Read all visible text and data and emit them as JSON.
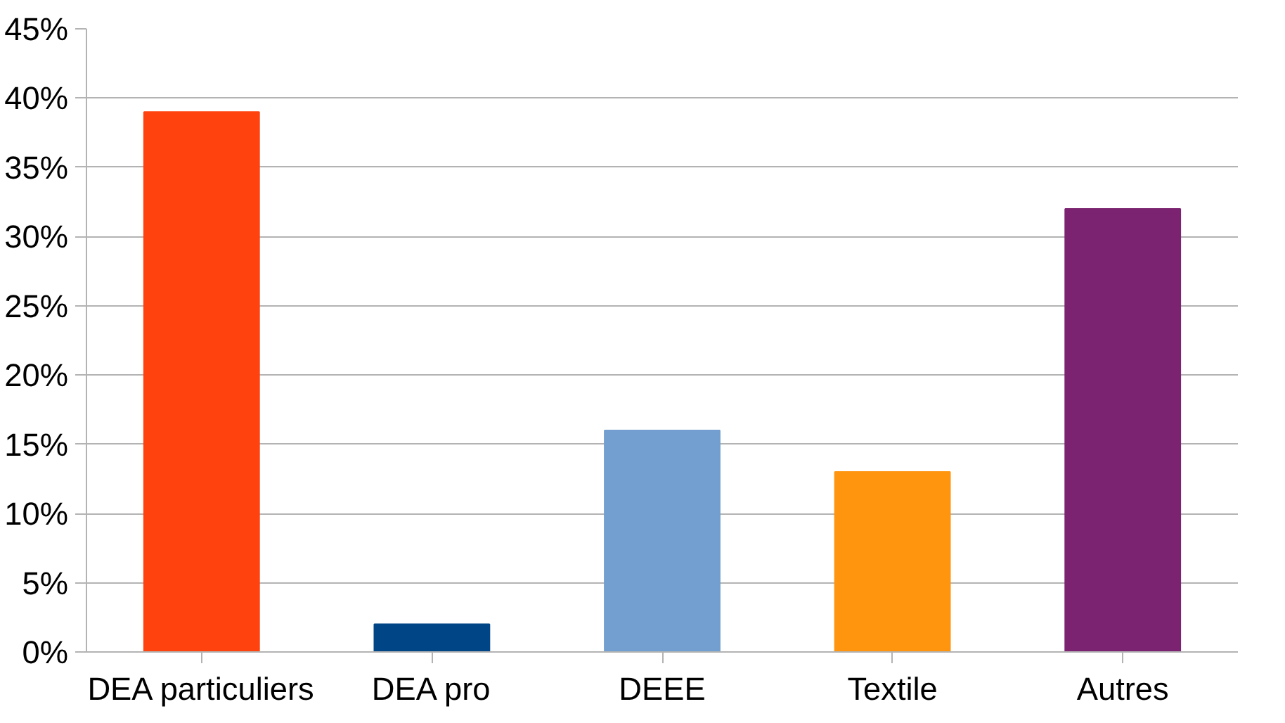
{
  "chart_data": {
    "type": "bar",
    "categories": [
      "DEA particuliers",
      "DEA pro",
      "DEEE",
      "Textile",
      "Autres"
    ],
    "values": [
      39,
      2,
      16,
      13,
      32
    ],
    "colors": [
      "#ff420e",
      "#004586",
      "#729fcf",
      "#ff950e",
      "#7b2370"
    ],
    "ylim": [
      0,
      45
    ],
    "yticks": [
      {
        "value": 0,
        "label": "0%"
      },
      {
        "value": 5,
        "label": "5%"
      },
      {
        "value": 10,
        "label": "10%"
      },
      {
        "value": 15,
        "label": "15%"
      },
      {
        "value": 20,
        "label": "20%"
      },
      {
        "value": 25,
        "label": "25%"
      },
      {
        "value": 30,
        "label": "30%"
      },
      {
        "value": 35,
        "label": "35%"
      },
      {
        "value": 40,
        "label": "40%"
      },
      {
        "value": 45,
        "label": "45%"
      }
    ],
    "grid": "y"
  }
}
